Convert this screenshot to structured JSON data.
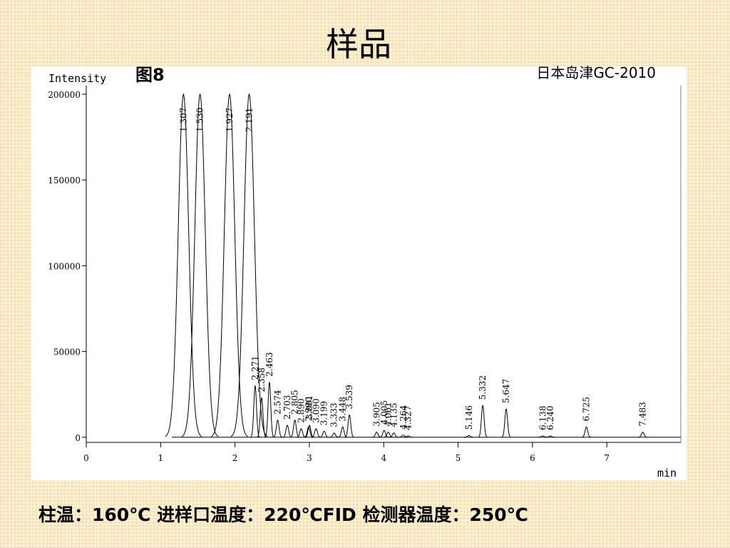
{
  "chart_data": {
    "type": "chromatogram",
    "title": "样品",
    "figure_label": "图8",
    "instrument": "日本岛津GC-2010",
    "ylabel": "Intensity",
    "xlabel": "min",
    "footer": "柱温：160℃   进样口温度：220℃FID    检测器温度：250℃",
    "x": [
      1.307,
      1.53,
      1.927,
      2.191,
      2.271,
      2.358,
      2.463,
      2.574,
      2.703,
      2.805,
      2.89,
      2.99,
      3.001,
      3.09,
      3.199,
      3.333,
      3.448,
      3.539,
      3.905,
      4.005,
      4.061,
      4.135,
      4.264,
      4.327,
      5.146,
      5.332,
      5.647,
      6.138,
      6.24,
      6.725,
      7.483
    ],
    "x_labels": [
      "1.307",
      "1.530",
      "1.927",
      "2.191",
      "2.271",
      "2.358",
      "2.463",
      "2.574",
      "2.703",
      "2.805",
      "2.890",
      "2.990",
      "3.001",
      "3.090",
      "3.199",
      "3.333",
      "3.448",
      "3.539",
      "3.905",
      "4.005",
      "4.061",
      "4.135",
      "4.264",
      "4.327",
      "5.146",
      "5.332",
      "5.647",
      "6.138",
      "6.240",
      "6.725",
      "7.483"
    ],
    "values": [
      200000,
      200000,
      200000,
      200000,
      30000,
      23000,
      32000,
      10000,
      7000,
      10000,
      5000,
      6000,
      7000,
      5000,
      3500,
      2500,
      6000,
      13000,
      3000,
      4000,
      3000,
      2500,
      1200,
      800,
      1000,
      18500,
      16500,
      800,
      800,
      6000,
      3000
    ],
    "color": "#000000",
    "xlim": [
      0,
      8
    ],
    "xticks": [
      0,
      1,
      2,
      3,
      4,
      5,
      6,
      7
    ],
    "ylim": [
      -3000,
      205000
    ],
    "yticks": [
      0,
      50000,
      100000,
      150000,
      200000
    ],
    "grid": false
  }
}
